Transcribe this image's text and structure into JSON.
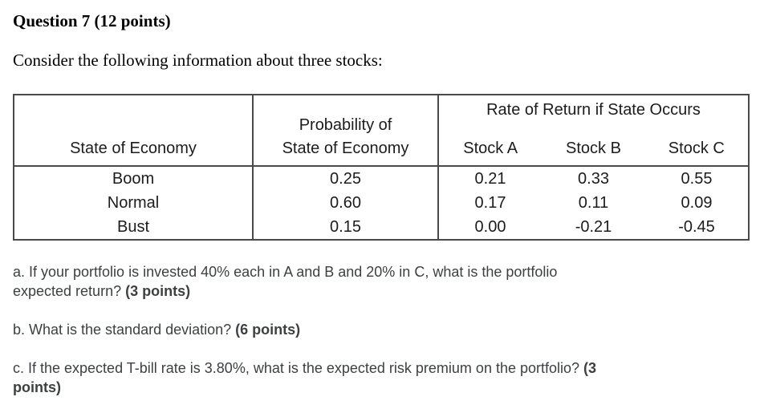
{
  "header": {
    "title": "Question 7 (12 points)",
    "intro": "Consider the following information about three stocks:"
  },
  "table": {
    "group_header": "Rate of Return if State Occurs",
    "columns": {
      "state": "State of Economy",
      "probability_line1": "Probability of",
      "probability_line2": "State of Economy",
      "stock_a": "Stock A",
      "stock_b": "Stock B",
      "stock_c": "Stock C"
    },
    "rows": [
      {
        "state": "Boom",
        "probability": "0.25",
        "stock_a": "0.21",
        "stock_b": "0.33",
        "stock_c": "0.55"
      },
      {
        "state": "Normal",
        "probability": "0.60",
        "stock_a": "0.17",
        "stock_b": "0.11",
        "stock_c": "0.09"
      },
      {
        "state": "Bust",
        "probability": "0.15",
        "stock_a": "0.00",
        "stock_b": "-0.21",
        "stock_c": "-0.45"
      }
    ]
  },
  "questions": {
    "a": {
      "line1": "a. If your portfolio is invested 40% each in A and B and 20% in C, what is the portfolio",
      "line2_text": "expected return? ",
      "line2_points": "(3 points)"
    },
    "b": {
      "line1_text": "b. What is the standard deviation? ",
      "line1_points": "(6 points)"
    },
    "c": {
      "line1_text": "c. If the expected T-bill rate is 3.80%, what is the expected risk premium on the portfolio? ",
      "line1_points": "(3",
      "line2_points": "points)"
    }
  },
  "colors": {
    "background": "#ffffff",
    "body_text": "#1c1c1c",
    "question_text": "#3d3f42",
    "table_border": "#4a4a4a"
  }
}
